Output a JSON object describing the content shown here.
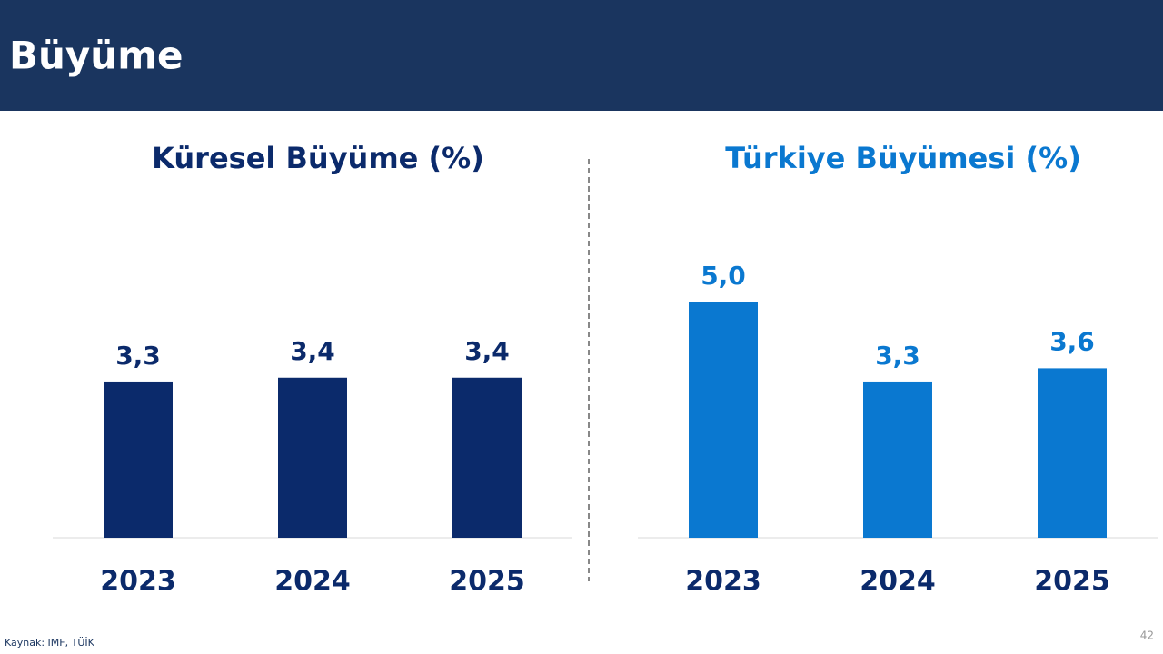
{
  "header": {
    "title": "Büyüme"
  },
  "chart_data": [
    {
      "type": "bar",
      "title": "Küresel Büyüme (%)",
      "categories": [
        "2023",
        "2024",
        "2025"
      ],
      "values": [
        3.3,
        3.4,
        3.4
      ],
      "value_labels": [
        "3,3",
        "3,4",
        "3,4"
      ],
      "color": "#0b2a6b",
      "ylim": [
        0,
        6
      ]
    },
    {
      "type": "bar",
      "title": "Türkiye Büyümesi (%)",
      "categories": [
        "2023",
        "2024",
        "2025"
      ],
      "values": [
        5.0,
        3.3,
        3.6
      ],
      "value_labels": [
        "5,0",
        "3,3",
        "3,6"
      ],
      "color": "#0a78d0",
      "ylim": [
        0,
        6
      ]
    }
  ],
  "footer": {
    "source": "Kaynak: IMF, TÜİK",
    "page": "42"
  }
}
